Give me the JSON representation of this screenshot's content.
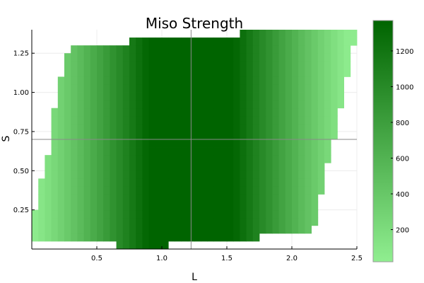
{
  "chart_data": {
    "type": "heatmap",
    "title": "Miso Strength",
    "xlabel": "L",
    "ylabel": "S",
    "xlim": [
      0,
      2.5
    ],
    "ylim": [
      0,
      1.4
    ],
    "x_ticks": [
      "0.5",
      "1.0",
      "1.5",
      "2.0",
      "2.5"
    ],
    "y_ticks": [
      "0.25",
      "0.50",
      "0.75",
      "1.00",
      "1.25"
    ],
    "cell_size": [
      0.05,
      0.05
    ],
    "colorbar": {
      "min": 20,
      "max": 1370,
      "low_color": "#90EE90",
      "high_color": "#006400",
      "ticks": [
        "200",
        "400",
        "600",
        "800",
        "1000",
        "1200"
      ]
    },
    "crosshair": {
      "x": 1.225,
      "y": 0.7
    },
    "rows": [
      {
        "y": 0.025,
        "x_min": 0.65,
        "x_max": 1.05
      },
      {
        "y": 0.075,
        "x_min": 0.0,
        "x_max": 1.75
      },
      {
        "y": 0.125,
        "x_min": 0.0,
        "x_max": 2.15
      },
      {
        "y": 0.175,
        "x_min": 0.0,
        "x_max": 2.2
      },
      {
        "y": 0.225,
        "x_min": 0.0,
        "x_max": 2.2
      },
      {
        "y": 0.275,
        "x_min": 0.05,
        "x_max": 2.2
      },
      {
        "y": 0.325,
        "x_min": 0.05,
        "x_max": 2.2
      },
      {
        "y": 0.375,
        "x_min": 0.05,
        "x_max": 2.25
      },
      {
        "y": 0.425,
        "x_min": 0.05,
        "x_max": 2.25
      },
      {
        "y": 0.475,
        "x_min": 0.1,
        "x_max": 2.25
      },
      {
        "y": 0.525,
        "x_min": 0.1,
        "x_max": 2.25
      },
      {
        "y": 0.575,
        "x_min": 0.1,
        "x_max": 2.3
      },
      {
        "y": 0.625,
        "x_min": 0.15,
        "x_max": 2.3
      },
      {
        "y": 0.675,
        "x_min": 0.15,
        "x_max": 2.3
      },
      {
        "y": 0.725,
        "x_min": 0.15,
        "x_max": 2.35
      },
      {
        "y": 0.775,
        "x_min": 0.15,
        "x_max": 2.35
      },
      {
        "y": 0.825,
        "x_min": 0.15,
        "x_max": 2.35
      },
      {
        "y": 0.875,
        "x_min": 0.15,
        "x_max": 2.35
      },
      {
        "y": 0.925,
        "x_min": 0.2,
        "x_max": 2.4
      },
      {
        "y": 0.975,
        "x_min": 0.2,
        "x_max": 2.4
      },
      {
        "y": 1.025,
        "x_min": 0.2,
        "x_max": 2.4
      },
      {
        "y": 1.075,
        "x_min": 0.2,
        "x_max": 2.4
      },
      {
        "y": 1.125,
        "x_min": 0.25,
        "x_max": 2.45
      },
      {
        "y": 1.175,
        "x_min": 0.25,
        "x_max": 2.45
      },
      {
        "y": 1.225,
        "x_min": 0.25,
        "x_max": 2.45
      },
      {
        "y": 1.275,
        "x_min": 0.3,
        "x_max": 2.45
      },
      {
        "y": 1.325,
        "x_min": 0.75,
        "x_max": 2.5
      },
      {
        "y": 1.375,
        "x_min": 1.6,
        "x_max": 2.5
      }
    ]
  }
}
